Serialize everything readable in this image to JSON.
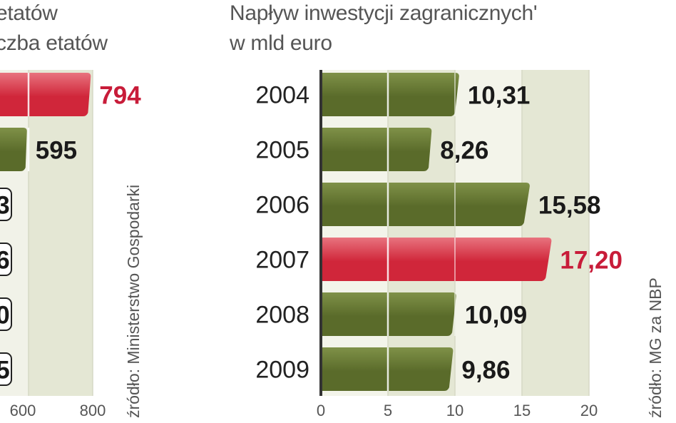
{
  "left_panel": {
    "title_line1": "etatów",
    "title_line2": "czba etatów",
    "source": "źródło: Ministerstwo Gospodarki",
    "chart_data": {
      "type": "bar",
      "orientation": "horizontal",
      "values": [
        794,
        595,
        3,
        6,
        0,
        5
      ],
      "value_labels": [
        "794",
        "595",
        "3",
        "6",
        "0",
        "5"
      ],
      "highlight_index": 0,
      "x_ticks": [
        "600",
        "800"
      ],
      "grid": true
    }
  },
  "right_panel": {
    "title_line1": "Napływ inwestycji zagranicznych'",
    "title_line2": "w mld euro",
    "source": "źródło: MG za NBP",
    "chart_data": {
      "type": "bar",
      "orientation": "horizontal",
      "categories": [
        "2004",
        "2005",
        "2006",
        "2007",
        "2008",
        "2009"
      ],
      "values": [
        10.31,
        8.26,
        15.58,
        17.2,
        10.09,
        9.86
      ],
      "value_labels": [
        "10,31",
        "8,26",
        "15,58",
        "17,20",
        "10,09",
        "9,86"
      ],
      "highlight_index": 3,
      "xlim": [
        0,
        20
      ],
      "x_ticks": [
        "0",
        "5",
        "10",
        "15",
        "20"
      ],
      "grid": true
    }
  },
  "colors": {
    "bar_olive": "#5a6b2a",
    "bar_olive_light": "#7f9148",
    "bar_red": "#d0263a",
    "bar_red_light": "#e8737e",
    "highlight_text": "#c81c39",
    "label_text": "#1a1a1a",
    "band": "#e4e7d4",
    "title_text": "#555555"
  }
}
